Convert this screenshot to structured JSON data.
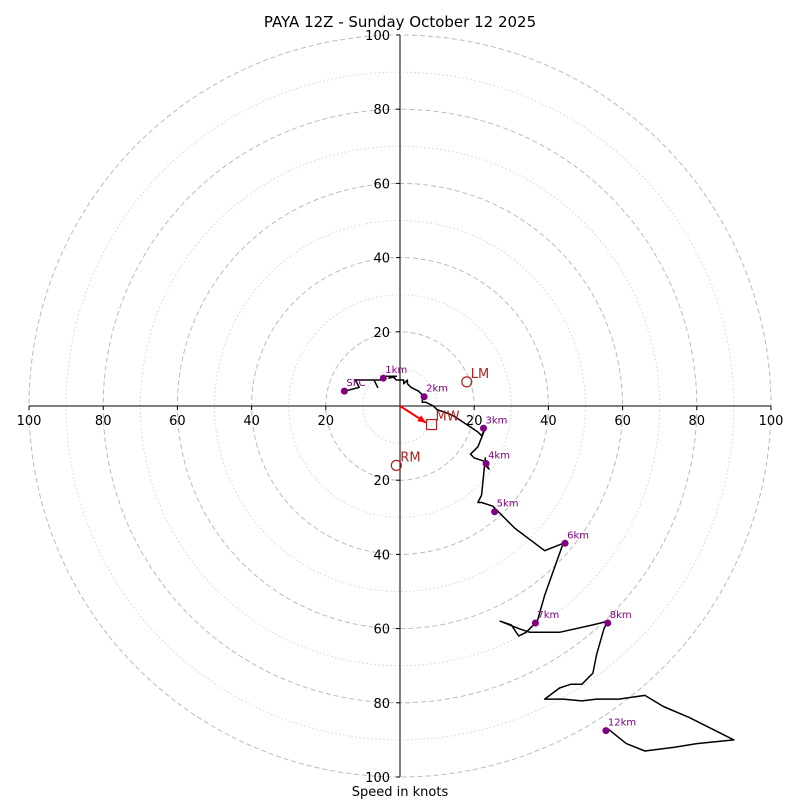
{
  "chart_data": {
    "type": "hodograph",
    "title": "PAYA 12Z - Sunday October 12 2025",
    "xlabel": "Speed in knots",
    "range": 100,
    "ring_labels": [
      "20",
      "40",
      "60",
      "80",
      "100"
    ],
    "x_tick_labels": [
      "100",
      "80",
      "60",
      "40",
      "20",
      "20",
      "40",
      "60",
      "80",
      "100"
    ],
    "y_tick_labels": [
      "100",
      "80",
      "60",
      "40",
      "20",
      "20",
      "40",
      "60",
      "80",
      "100"
    ],
    "colors": {
      "trace": "#000000",
      "height_marker": "#800080",
      "motion": "#b22222",
      "shear_arrow": "#ff0000",
      "grid": "#bbbbbb"
    },
    "trace": [
      [
        -11,
        5
      ],
      [
        -15,
        4
      ],
      [
        -11,
        5
      ],
      [
        -12,
        7
      ],
      [
        -9,
        7
      ],
      [
        -7,
        7
      ],
      [
        -6,
        5
      ],
      [
        -7,
        7
      ],
      [
        -5,
        7
      ],
      [
        -4,
        8
      ],
      [
        -2,
        8
      ],
      [
        -3,
        7.5
      ],
      [
        -1,
        8
      ],
      [
        -2,
        8
      ],
      [
        -1,
        7
      ],
      [
        0,
        7
      ],
      [
        1,
        7
      ],
      [
        1,
        6
      ],
      [
        2,
        7
      ],
      [
        2,
        6
      ],
      [
        3,
        5
      ],
      [
        5,
        4
      ],
      [
        6,
        3
      ],
      [
        6,
        1
      ],
      [
        7,
        1
      ],
      [
        9,
        0
      ],
      [
        10,
        -1
      ],
      [
        13,
        -2
      ],
      [
        15,
        -3
      ],
      [
        18,
        -5
      ],
      [
        21,
        -7
      ],
      [
        22,
        -8
      ],
      [
        23,
        -6
      ],
      [
        21,
        -11
      ],
      [
        19,
        -13
      ],
      [
        20,
        -14
      ],
      [
        23,
        -15
      ],
      [
        24,
        -17
      ],
      [
        23,
        -16
      ],
      [
        23,
        -14
      ],
      [
        22,
        -24
      ],
      [
        21,
        -26
      ],
      [
        22,
        -26
      ],
      [
        25,
        -27
      ],
      [
        26,
        -28
      ],
      [
        31,
        -33
      ],
      [
        39,
        -39
      ],
      [
        44,
        -37
      ],
      [
        39,
        -51
      ],
      [
        37,
        -58
      ],
      [
        34,
        -61
      ],
      [
        32,
        -62
      ],
      [
        30,
        -59
      ],
      [
        27,
        -58
      ],
      [
        32,
        -60
      ],
      [
        35,
        -61
      ],
      [
        43,
        -61
      ],
      [
        52,
        -59
      ],
      [
        56,
        -58
      ],
      [
        55,
        -60
      ],
      [
        53,
        -67
      ],
      [
        52,
        -72
      ],
      [
        49,
        -75
      ],
      [
        46,
        -75
      ],
      [
        43,
        -76
      ],
      [
        39,
        -79
      ],
      [
        44,
        -79
      ],
      [
        49,
        -79.5
      ],
      [
        53,
        -79
      ],
      [
        59,
        -79
      ],
      [
        66,
        -78
      ],
      [
        71,
        -81
      ],
      [
        78,
        -84
      ],
      [
        90,
        -90
      ],
      [
        80,
        -91
      ],
      [
        74,
        -92
      ],
      [
        66,
        -93
      ],
      [
        61,
        -91
      ],
      [
        56,
        -87
      ]
    ],
    "height_markers": [
      {
        "label": "SFC",
        "u": -15,
        "v": 4
      },
      {
        "label": "1km",
        "u": -4.5,
        "v": 7.5
      },
      {
        "label": "2km",
        "u": 6.5,
        "v": 2.5
      },
      {
        "label": "3km",
        "u": 22.5,
        "v": -6
      },
      {
        "label": "4km",
        "u": 23.2,
        "v": -15.5
      },
      {
        "label": "5km",
        "u": 25.5,
        "v": -28.5
      },
      {
        "label": "6km",
        "u": 44.5,
        "v": -37
      },
      {
        "label": "7km",
        "u": 36.5,
        "v": -58.5
      },
      {
        "label": "8km",
        "u": 56,
        "v": -58.5
      },
      {
        "label": "12km",
        "u": 55.5,
        "v": -87.5
      }
    ],
    "storm_motion": [
      {
        "label": "LM",
        "u": 18,
        "v": 6.5,
        "symbol": "circle"
      },
      {
        "label": "MW",
        "u": 8.5,
        "v": -5,
        "symbol": "square"
      },
      {
        "label": "RM",
        "u": -1,
        "v": -16,
        "symbol": "circle"
      }
    ],
    "shear_arrow": {
      "from_u": 0,
      "from_v": 0,
      "to_u": 7,
      "to_v": -4.5
    }
  }
}
